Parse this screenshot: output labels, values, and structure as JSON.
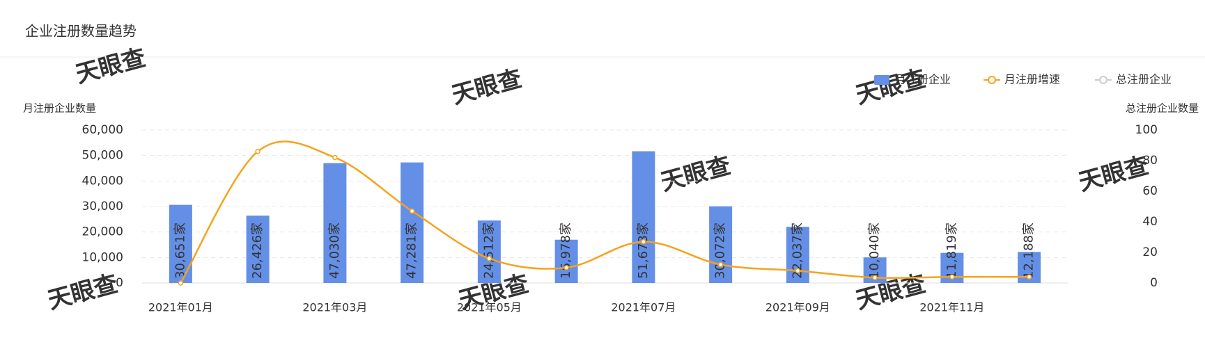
{
  "chart_data": {
    "type": "bar",
    "title": "企业注册数量趋势",
    "y_label": "月注册企业数量",
    "y2_label": "总注册企业数量",
    "watermark": "天眼查",
    "categories": [
      "2021年01月",
      null,
      "2021年03月",
      null,
      "2021年05月",
      null,
      "2021年07月",
      null,
      "2021年09月",
      null,
      "2021年11月",
      null
    ],
    "series": [
      {
        "name": "月注册企业",
        "type": "bar",
        "color": "#648fe6",
        "values": [
          30651,
          26426,
          47030,
          47281,
          24512,
          16978,
          51673,
          30072,
          22037,
          10040,
          11819,
          12188
        ],
        "value_labels": [
          "30,651家",
          "26,426家",
          "47,030家",
          "47,281家",
          "24,512家",
          "16,978家",
          "51,673家",
          "30,072家",
          "22,037家",
          "10,040家",
          "11,819家",
          "12,188家"
        ]
      },
      {
        "name": "月注册增速",
        "type": "line",
        "axis": "y2",
        "color": "#f7a21b",
        "values": [
          0,
          86,
          82,
          47,
          16,
          10,
          27,
          12,
          8,
          3.5,
          4,
          4
        ]
      },
      {
        "name": "总注册企业",
        "type": "line",
        "axis": "y2",
        "color": "#cccccc",
        "hidden": true
      }
    ],
    "ylim": [
      0,
      60000
    ],
    "yticks": [
      0,
      {
        "value": 10000,
        "label": "10,000"
      },
      {
        "value": 20000,
        "label": "20,000"
      },
      {
        "value": 30000,
        "label": "30,000"
      },
      {
        "value": 40000,
        "label": "40,000"
      },
      {
        "value": 50000,
        "label": "50,000"
      },
      {
        "value": 60000,
        "label": "60,000"
      }
    ],
    "y2lim": [
      0,
      100
    ],
    "y2ticks": [
      0,
      20,
      40,
      60,
      80,
      100
    ],
    "grid": true,
    "legend": "top-right"
  }
}
